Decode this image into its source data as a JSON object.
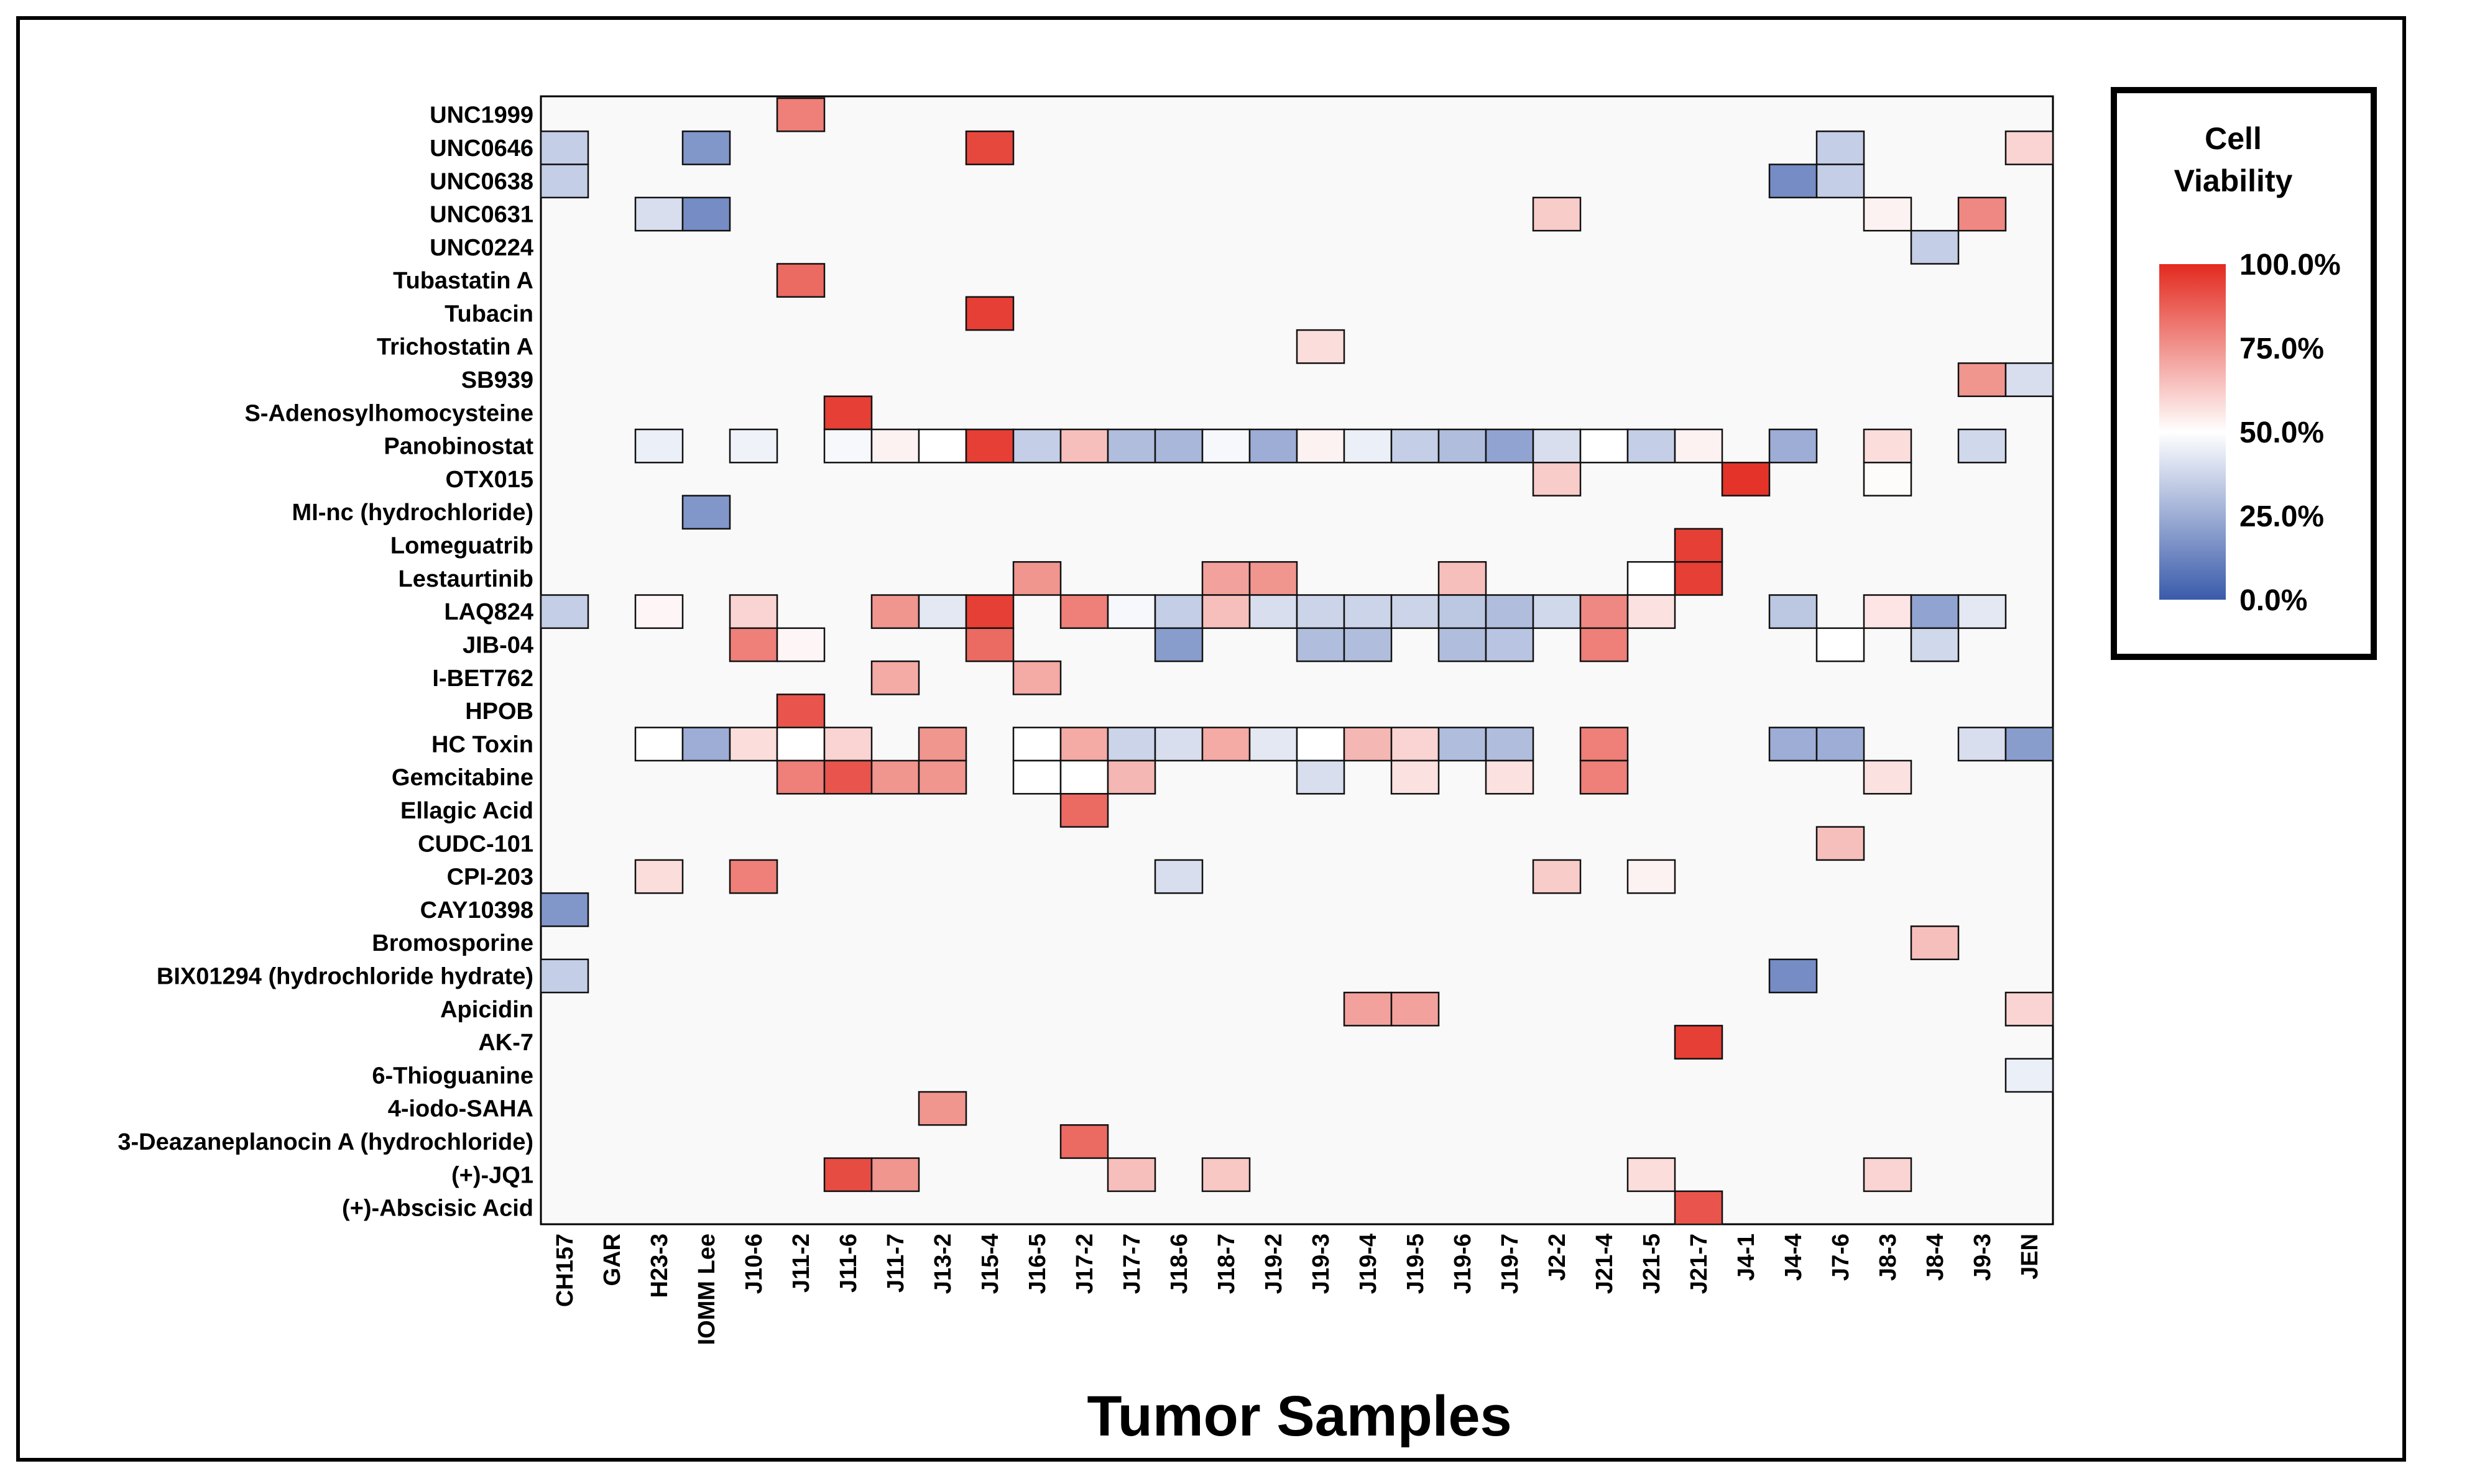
{
  "chart_data": {
    "type": "heatmap",
    "title": "",
    "xlabel": "Tumor Samples",
    "ylabel": "",
    "x_categories": [
      "CH157",
      "GAR",
      "H23-3",
      "IOMM Lee",
      "J10-6",
      "J11-2",
      "J11-6",
      "J11-7",
      "J13-2",
      "J15-4",
      "J16-5",
      "J17-2",
      "J17-7",
      "J18-6",
      "J18-7",
      "J19-2",
      "J19-3",
      "J19-4",
      "J19-5",
      "J19-6",
      "J19-7",
      "J2-2",
      "J21-4",
      "J21-5",
      "J21-7",
      "J4-1",
      "J4-4",
      "J7-6",
      "J8-3",
      "J8-4",
      "J9-3",
      "JEN"
    ],
    "y_categories": [
      "UNC1999",
      "UNC0646",
      "UNC0638",
      "UNC0631",
      "UNC0224",
      "Tubastatin A",
      "Tubacin",
      "Trichostatin A",
      "SB939",
      "S-Adenosylhomocysteine",
      "Panobinostat",
      "OTX015",
      "MI-nc (hydrochloride)",
      "Lomeguatrib",
      "Lestaurtinib",
      "LAQ824",
      "JIB-04",
      "I-BET762",
      "HPOB",
      "HC Toxin",
      "Gemcitabine",
      "Ellagic Acid",
      "CUDC-101",
      "CPI-203",
      "CAY10398",
      "Bromosporine",
      "BIX01294 (hydrochloride hydrate)",
      "Apicidin",
      "AK-7",
      "6-Thioguanine",
      "4-iodo-SAHA",
      "3-Deazaneplanocin A (hydrochloride)",
      "(+)-JQ1",
      "(+)-Abscisic Acid"
    ],
    "values_percent_cell_viability": [
      [
        null,
        null,
        null,
        null,
        null,
        80,
        null,
        null,
        null,
        null,
        null,
        null,
        null,
        null,
        null,
        null,
        null,
        null,
        null,
        null,
        null,
        null,
        null,
        null,
        null,
        null,
        null,
        null,
        null,
        null,
        null,
        null
      ],
      [
        35,
        null,
        null,
        18,
        null,
        null,
        null,
        null,
        null,
        93,
        null,
        null,
        null,
        null,
        null,
        null,
        null,
        null,
        null,
        null,
        null,
        null,
        null,
        null,
        null,
        null,
        null,
        35,
        null,
        null,
        null,
        60
      ],
      [
        35,
        null,
        null,
        null,
        null,
        null,
        null,
        null,
        null,
        null,
        null,
        null,
        null,
        null,
        null,
        null,
        null,
        null,
        null,
        null,
        null,
        null,
        null,
        null,
        null,
        null,
        15,
        35,
        null,
        null,
        null,
        null
      ],
      [
        null,
        null,
        40,
        15,
        null,
        null,
        null,
        null,
        null,
        null,
        null,
        null,
        null,
        null,
        null,
        null,
        null,
        null,
        null,
        null,
        null,
        62,
        null,
        null,
        null,
        null,
        null,
        null,
        53,
        null,
        78,
        null
      ],
      [
        null,
        null,
        null,
        null,
        null,
        null,
        null,
        null,
        null,
        null,
        null,
        null,
        null,
        null,
        null,
        null,
        null,
        null,
        null,
        null,
        null,
        null,
        null,
        null,
        null,
        null,
        null,
        null,
        null,
        35,
        null,
        null
      ],
      [
        null,
        null,
        null,
        null,
        null,
        85,
        null,
        null,
        null,
        null,
        null,
        null,
        null,
        null,
        null,
        null,
        null,
        null,
        null,
        null,
        null,
        null,
        null,
        null,
        null,
        null,
        null,
        null,
        null,
        null,
        null,
        null
      ],
      [
        null,
        null,
        null,
        null,
        null,
        null,
        null,
        null,
        null,
        95,
        null,
        null,
        null,
        null,
        null,
        null,
        null,
        null,
        null,
        null,
        null,
        null,
        null,
        null,
        null,
        null,
        null,
        null,
        null,
        null,
        null,
        null
      ],
      [
        null,
        null,
        null,
        null,
        null,
        null,
        null,
        null,
        null,
        null,
        null,
        null,
        null,
        null,
        null,
        null,
        58,
        null,
        null,
        null,
        null,
        null,
        null,
        null,
        null,
        null,
        null,
        null,
        null,
        null,
        null,
        null
      ],
      [
        null,
        null,
        null,
        null,
        null,
        null,
        null,
        null,
        null,
        null,
        null,
        null,
        null,
        null,
        null,
        null,
        null,
        null,
        null,
        null,
        null,
        null,
        null,
        null,
        null,
        null,
        null,
        null,
        null,
        null,
        75,
        40
      ],
      [
        null,
        null,
        null,
        null,
        null,
        null,
        95,
        null,
        null,
        null,
        null,
        null,
        null,
        null,
        null,
        null,
        null,
        null,
        null,
        null,
        null,
        null,
        null,
        null,
        null,
        null,
        null,
        null,
        null,
        null,
        null,
        null
      ],
      [
        null,
        null,
        45,
        null,
        46,
        null,
        48,
        53,
        50,
        95,
        35,
        65,
        30,
        28,
        48,
        25,
        53,
        45,
        35,
        30,
        22,
        40,
        50,
        35,
        53,
        null,
        25,
        null,
        58,
        null,
        38,
        null
      ],
      [
        null,
        null,
        null,
        null,
        null,
        null,
        null,
        null,
        null,
        null,
        null,
        null,
        null,
        null,
        null,
        null,
        null,
        null,
        null,
        null,
        null,
        62,
        null,
        null,
        null,
        98,
        null,
        null,
        51,
        null,
        null,
        null
      ],
      [
        null,
        null,
        null,
        18,
        null,
        null,
        null,
        null,
        null,
        null,
        null,
        null,
        null,
        null,
        null,
        null,
        null,
        null,
        null,
        null,
        null,
        null,
        null,
        null,
        null,
        null,
        null,
        null,
        null,
        null,
        null,
        null
      ],
      [
        null,
        null,
        null,
        null,
        null,
        null,
        null,
        null,
        null,
        null,
        null,
        null,
        null,
        null,
        null,
        null,
        null,
        null,
        null,
        null,
        null,
        null,
        null,
        null,
        95,
        null,
        null,
        null,
        null,
        null,
        null,
        null
      ],
      [
        null,
        null,
        null,
        null,
        null,
        null,
        null,
        null,
        null,
        null,
        75,
        null,
        null,
        null,
        72,
        75,
        null,
        null,
        null,
        65,
        null,
        null,
        null,
        50,
        95,
        null,
        null,
        null,
        null,
        null,
        null,
        null
      ],
      [
        35,
        null,
        52,
        null,
        60,
        null,
        null,
        75,
        43,
        95,
        null,
        80,
        48,
        35,
        65,
        40,
        37,
        37,
        37,
        33,
        30,
        38,
        78,
        57,
        null,
        null,
        33,
        null,
        56,
        22,
        43,
        null
      ],
      [
        null,
        null,
        null,
        null,
        80,
        52,
        null,
        null,
        null,
        85,
        null,
        null,
        null,
        20,
        null,
        null,
        30,
        30,
        null,
        30,
        32,
        null,
        80,
        null,
        null,
        null,
        null,
        50,
        null,
        38,
        null,
        null
      ],
      [
        null,
        null,
        null,
        null,
        null,
        null,
        null,
        70,
        null,
        null,
        70,
        null,
        null,
        null,
        null,
        null,
        null,
        null,
        null,
        null,
        null,
        null,
        null,
        null,
        null,
        null,
        null,
        null,
        null,
        null,
        null,
        null
      ],
      [
        null,
        null,
        null,
        null,
        null,
        90,
        null,
        null,
        null,
        null,
        null,
        null,
        null,
        null,
        null,
        null,
        null,
        null,
        null,
        null,
        null,
        null,
        null,
        null,
        null,
        null,
        null,
        null,
        null,
        null,
        null,
        null
      ],
      [
        null,
        null,
        50,
        25,
        58,
        50,
        60,
        null,
        75,
        null,
        50,
        70,
        37,
        40,
        70,
        43,
        50,
        67,
        60,
        30,
        30,
        null,
        80,
        null,
        null,
        null,
        25,
        25,
        null,
        null,
        40,
        20
      ],
      [
        null,
        null,
        null,
        null,
        null,
        80,
        90,
        75,
        75,
        null,
        50,
        50,
        67,
        null,
        null,
        null,
        40,
        null,
        57,
        null,
        57,
        null,
        80,
        null,
        null,
        null,
        null,
        null,
        57,
        null,
        null,
        null
      ],
      [
        null,
        null,
        null,
        null,
        null,
        null,
        null,
        null,
        null,
        null,
        null,
        85,
        null,
        null,
        null,
        null,
        null,
        null,
        null,
        null,
        null,
        null,
        null,
        null,
        null,
        null,
        null,
        null,
        null,
        null,
        null,
        null
      ],
      [
        null,
        null,
        null,
        null,
        null,
        null,
        null,
        null,
        null,
        null,
        null,
        null,
        null,
        null,
        null,
        null,
        null,
        null,
        null,
        null,
        null,
        null,
        null,
        null,
        null,
        null,
        null,
        65,
        null,
        null,
        null,
        null
      ],
      [
        null,
        null,
        58,
        null,
        80,
        null,
        null,
        null,
        null,
        null,
        null,
        null,
        null,
        40,
        null,
        null,
        null,
        null,
        null,
        null,
        null,
        62,
        null,
        53,
        null,
        null,
        null,
        null,
        null,
        null,
        null,
        null
      ],
      [
        18,
        null,
        null,
        null,
        null,
        null,
        null,
        null,
        null,
        null,
        null,
        null,
        null,
        null,
        null,
        null,
        null,
        null,
        null,
        null,
        null,
        null,
        null,
        null,
        null,
        null,
        null,
        null,
        null,
        null,
        null,
        null
      ],
      [
        null,
        null,
        null,
        null,
        null,
        null,
        null,
        null,
        null,
        null,
        null,
        null,
        null,
        null,
        null,
        null,
        null,
        null,
        null,
        null,
        null,
        null,
        null,
        null,
        null,
        null,
        null,
        null,
        null,
        65,
        null,
        null
      ],
      [
        35,
        null,
        null,
        null,
        null,
        null,
        null,
        null,
        null,
        null,
        null,
        null,
        null,
        null,
        null,
        null,
        null,
        null,
        null,
        null,
        null,
        null,
        null,
        null,
        null,
        null,
        15,
        null,
        null,
        null,
        null,
        null
      ],
      [
        null,
        null,
        null,
        null,
        null,
        null,
        null,
        null,
        null,
        null,
        null,
        null,
        null,
        null,
        null,
        null,
        null,
        72,
        72,
        null,
        null,
        null,
        null,
        null,
        null,
        null,
        null,
        null,
        null,
        null,
        null,
        60
      ],
      [
        null,
        null,
        null,
        null,
        null,
        null,
        null,
        null,
        null,
        null,
        null,
        null,
        null,
        null,
        null,
        null,
        null,
        null,
        null,
        null,
        null,
        null,
        null,
        null,
        95,
        null,
        null,
        null,
        null,
        null,
        null,
        null
      ],
      [
        null,
        null,
        null,
        null,
        null,
        null,
        null,
        null,
        null,
        null,
        null,
        null,
        null,
        null,
        null,
        null,
        null,
        null,
        null,
        null,
        null,
        null,
        null,
        null,
        null,
        null,
        null,
        null,
        null,
        null,
        null,
        45
      ],
      [
        null,
        null,
        null,
        null,
        null,
        null,
        null,
        null,
        75,
        null,
        null,
        null,
        null,
        null,
        null,
        null,
        null,
        null,
        null,
        null,
        null,
        null,
        null,
        null,
        null,
        null,
        null,
        null,
        null,
        null,
        null,
        null
      ],
      [
        null,
        null,
        null,
        null,
        null,
        null,
        null,
        null,
        null,
        null,
        null,
        85,
        null,
        null,
        null,
        null,
        null,
        null,
        null,
        null,
        null,
        null,
        null,
        null,
        null,
        null,
        null,
        null,
        null,
        null,
        null,
        null
      ],
      [
        null,
        null,
        null,
        null,
        null,
        null,
        92,
        75,
        null,
        null,
        null,
        null,
        65,
        null,
        63,
        null,
        null,
        null,
        null,
        null,
        null,
        null,
        null,
        58,
        null,
        null,
        null,
        null,
        60,
        null,
        null,
        null
      ],
      [
        null,
        null,
        null,
        null,
        null,
        null,
        null,
        null,
        null,
        null,
        null,
        null,
        null,
        null,
        null,
        null,
        null,
        null,
        null,
        null,
        null,
        null,
        null,
        null,
        90,
        null,
        null,
        null,
        null,
        null,
        null,
        null
      ]
    ],
    "legend": {
      "title": "Cell Viability",
      "ticks": [
        "100.0%",
        "75.0%",
        "50.0%",
        "25.0%",
        "0.0%"
      ],
      "tick_values": [
        100,
        75,
        50,
        25,
        0
      ],
      "colors": {
        "low": "#3a5bab",
        "mid": "#ffffff",
        "high": "#e32a1f"
      },
      "placement": "right"
    },
    "grid": false,
    "plot_background": "#f9f9f9"
  }
}
